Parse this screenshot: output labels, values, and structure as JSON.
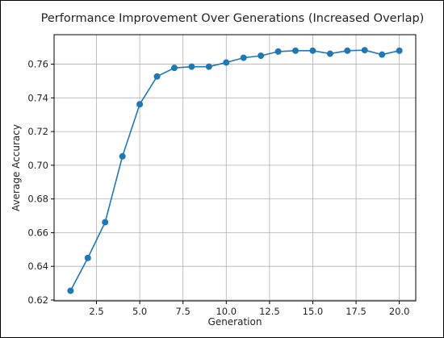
{
  "chart_data": {
    "type": "line",
    "title": "Performance Improvement Over Generations (Increased Overlap)",
    "xlabel": "Generation",
    "ylabel": "Average Accuracy",
    "xlim": [
      0.05,
      20.95
    ],
    "ylim": [
      0.6195,
      0.7775
    ],
    "grid": true,
    "x_ticks": [
      2.5,
      5.0,
      7.5,
      10.0,
      12.5,
      15.0,
      17.5,
      20.0
    ],
    "x_tick_labels": [
      "2.5",
      "5.0",
      "7.5",
      "10.0",
      "12.5",
      "15.0",
      "17.5",
      "20.0"
    ],
    "y_ticks": [
      0.62,
      0.64,
      0.66,
      0.68,
      0.7,
      0.72,
      0.74,
      0.76
    ],
    "y_tick_labels": [
      "0.62",
      "0.64",
      "0.66",
      "0.68",
      "0.70",
      "0.72",
      "0.74",
      "0.76"
    ],
    "series": [
      {
        "color": "#1f77b4",
        "marker": "circle",
        "x": [
          1,
          2,
          3,
          4,
          5,
          6,
          7,
          8,
          9,
          10,
          11,
          12,
          13,
          14,
          15,
          16,
          17,
          18,
          19,
          20
        ],
        "y": [
          0.6255,
          0.645,
          0.6662,
          0.7053,
          0.7362,
          0.7527,
          0.7578,
          0.7585,
          0.7585,
          0.761,
          0.7638,
          0.765,
          0.7675,
          0.768,
          0.768,
          0.7662,
          0.768,
          0.7683,
          0.7657,
          0.768
        ]
      }
    ]
  }
}
